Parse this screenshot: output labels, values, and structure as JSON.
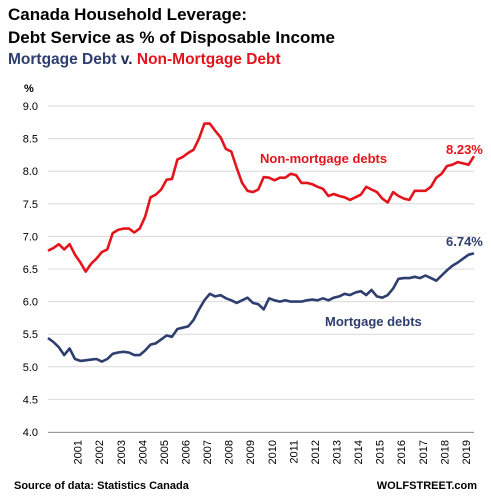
{
  "header": {
    "title_line1": "Canada Household Leverage:",
    "title_line2": "Debt Service as % of Disposable Income",
    "subtitle_mortgage": "Mortgage Debt",
    "subtitle_vs": " v. ",
    "subtitle_nonmortgage": "Non-Mortgage Debt"
  },
  "footer": {
    "source": "Source of data: Statistics Canada",
    "brand": "WOLFSTREET.com"
  },
  "colors": {
    "nonmortgage": "#e3141b",
    "mortgage": "#2e3e6e",
    "grid": "#d9d9d9"
  },
  "chart_data": {
    "type": "line",
    "ylabel": "%",
    "ylim": [
      4.0,
      9.0
    ],
    "yticks": [
      "4.0",
      "4.5",
      "5.0",
      "5.5",
      "6.0",
      "6.5",
      "7.0",
      "7.5",
      "8.0",
      "8.5",
      "9.0"
    ],
    "xlim": [
      2000.0,
      2019.75
    ],
    "xticks": [
      "2001",
      "2002",
      "2003",
      "2004",
      "2005",
      "2006",
      "2007",
      "2008",
      "2009",
      "2010",
      "2011",
      "2012",
      "2013",
      "2014",
      "2015",
      "2016",
      "2017",
      "2018",
      "2019"
    ],
    "grid": "horizontal",
    "x": [
      2000.0,
      2000.25,
      2000.5,
      2000.75,
      2001.0,
      2001.25,
      2001.5,
      2001.75,
      2002.0,
      2002.25,
      2002.5,
      2002.75,
      2003.0,
      2003.25,
      2003.5,
      2003.75,
      2004.0,
      2004.25,
      2004.5,
      2004.75,
      2005.0,
      2005.25,
      2005.5,
      2005.75,
      2006.0,
      2006.25,
      2006.5,
      2006.75,
      2007.0,
      2007.25,
      2007.5,
      2007.75,
      2008.0,
      2008.25,
      2008.5,
      2008.75,
      2009.0,
      2009.25,
      2009.5,
      2009.75,
      2010.0,
      2010.25,
      2010.5,
      2010.75,
      2011.0,
      2011.25,
      2011.5,
      2011.75,
      2012.0,
      2012.25,
      2012.5,
      2012.75,
      2013.0,
      2013.25,
      2013.5,
      2013.75,
      2014.0,
      2014.25,
      2014.5,
      2014.75,
      2015.0,
      2015.25,
      2015.5,
      2015.75,
      2016.0,
      2016.25,
      2016.5,
      2016.75,
      2017.0,
      2017.25,
      2017.5,
      2017.75,
      2018.0,
      2018.25,
      2018.5,
      2018.75,
      2019.0,
      2019.25,
      2019.5,
      2019.75
    ],
    "series": [
      {
        "name": "Non-mortgage debts",
        "end_label": "8.23%",
        "values": [
          6.78,
          6.82,
          6.88,
          6.8,
          6.88,
          6.72,
          6.6,
          6.46,
          6.58,
          6.66,
          6.76,
          6.8,
          7.05,
          7.1,
          7.12,
          7.12,
          7.06,
          7.12,
          7.3,
          7.6,
          7.64,
          7.72,
          7.87,
          7.88,
          8.18,
          8.22,
          8.28,
          8.33,
          8.5,
          8.73,
          8.73,
          8.62,
          8.52,
          8.34,
          8.3,
          8.05,
          7.82,
          7.7,
          7.68,
          7.72,
          7.91,
          7.9,
          7.86,
          7.9,
          7.9,
          7.96,
          7.94,
          7.82,
          7.82,
          7.8,
          7.76,
          7.73,
          7.62,
          7.65,
          7.62,
          7.6,
          7.56,
          7.6,
          7.64,
          7.76,
          7.72,
          7.68,
          7.58,
          7.52,
          7.68,
          7.62,
          7.58,
          7.56,
          7.7,
          7.7,
          7.7,
          7.76,
          7.9,
          7.96,
          8.08,
          8.1,
          8.14,
          8.12,
          8.1,
          8.23
        ]
      },
      {
        "name": "Mortgage debts",
        "end_label": "6.74%",
        "values": [
          5.44,
          5.38,
          5.3,
          5.18,
          5.28,
          5.12,
          5.09,
          5.1,
          5.11,
          5.12,
          5.08,
          5.12,
          5.2,
          5.22,
          5.23,
          5.22,
          5.18,
          5.18,
          5.25,
          5.34,
          5.36,
          5.42,
          5.48,
          5.46,
          5.58,
          5.6,
          5.62,
          5.72,
          5.88,
          6.02,
          6.12,
          6.08,
          6.1,
          6.05,
          6.02,
          5.98,
          6.02,
          6.06,
          5.98,
          5.96,
          5.88,
          6.05,
          6.02,
          6.0,
          6.02,
          6.0,
          6.0,
          6.0,
          6.02,
          6.03,
          6.02,
          6.05,
          6.02,
          6.06,
          6.08,
          6.12,
          6.1,
          6.14,
          6.16,
          6.1,
          6.18,
          6.08,
          6.06,
          6.1,
          6.2,
          6.35,
          6.36,
          6.36,
          6.38,
          6.36,
          6.4,
          6.36,
          6.32,
          6.4,
          6.48,
          6.55,
          6.6,
          6.66,
          6.72,
          6.74
        ]
      }
    ]
  }
}
